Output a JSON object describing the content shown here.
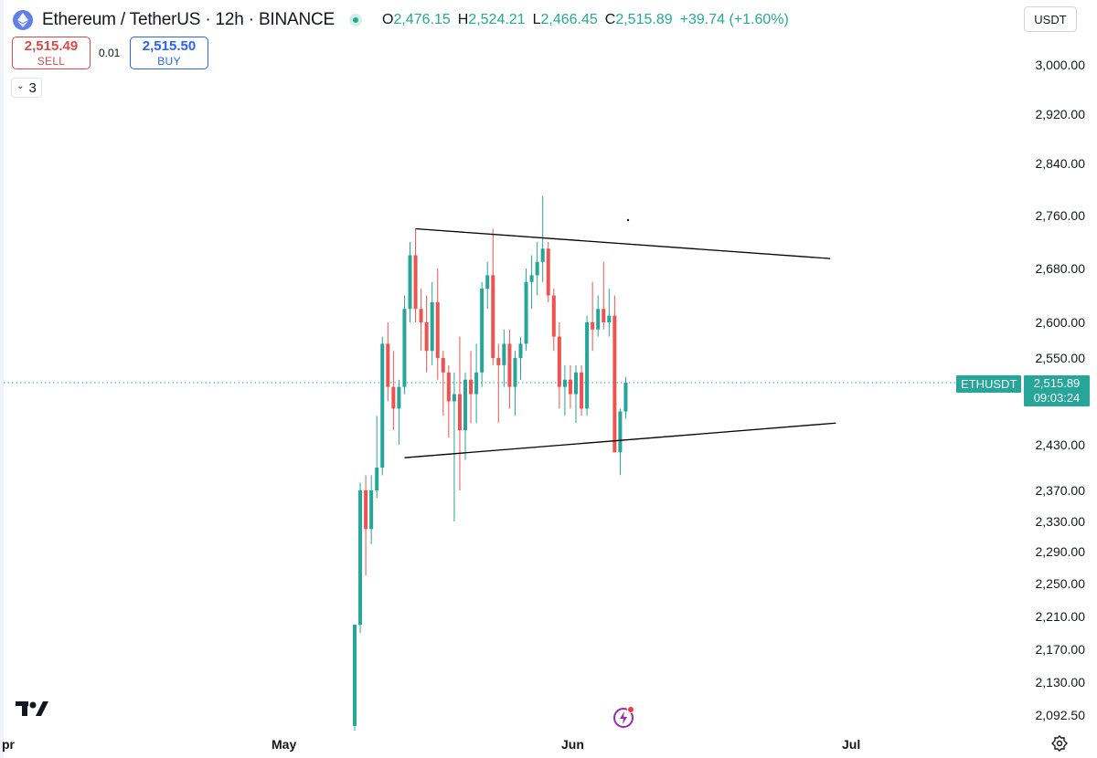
{
  "header": {
    "title": "Ethereum / TetherUS · 12h · BINANCE",
    "ohlc": [
      {
        "key": "O",
        "value": "2,476.15"
      },
      {
        "key": "H",
        "value": "2,524.21"
      },
      {
        "key": "L",
        "value": "2,466.45"
      },
      {
        "key": "C",
        "value": "2,515.89"
      }
    ],
    "change": "+39.74 (+1.60%)"
  },
  "currency": "USDT",
  "trade": {
    "sell_price": "2,515.49",
    "sell_label": "SELL",
    "spread": "0.01",
    "buy_price": "2,515.50",
    "buy_label": "BUY"
  },
  "indicators_toggle": {
    "count": "3"
  },
  "price_axis": {
    "ticks": [
      "3,000.00",
      "2,920.00",
      "2,840.00",
      "2,760.00",
      "2,680.00",
      "2,600.00",
      "2,550.00",
      "2,430.00",
      "2,370.00",
      "2,330.00",
      "2,290.00",
      "2,250.00",
      "2,210.00",
      "2,170.00",
      "2,130.00",
      "2,092.50"
    ]
  },
  "symbol_badge": "ETHUSDT",
  "last_price": {
    "price": "2,515.89",
    "countdown": "09:03:24"
  },
  "time_axis": {
    "ticks": [
      "pr",
      "May",
      "Jun",
      "Jul"
    ]
  },
  "colors": {
    "up": "#26a69a",
    "down": "#ef5350",
    "trendline": "#000000",
    "buy": "#2962ff",
    "sell": "#e04848"
  },
  "chart_data": {
    "type": "candlestick",
    "symbol": "ETHUSDT",
    "interval": "12h",
    "last_price": 2515.89,
    "candles": [
      {
        "o": 2080,
        "h": 2200,
        "l": 2070,
        "c": 2200
      },
      {
        "o": 2200,
        "h": 2380,
        "l": 2190,
        "c": 2370
      },
      {
        "o": 2370,
        "h": 2390,
        "l": 2260,
        "c": 2320
      },
      {
        "o": 2320,
        "h": 2390,
        "l": 2300,
        "c": 2370
      },
      {
        "o": 2370,
        "h": 2470,
        "l": 2360,
        "c": 2400
      },
      {
        "o": 2400,
        "h": 2580,
        "l": 2390,
        "c": 2570
      },
      {
        "o": 2570,
        "h": 2600,
        "l": 2490,
        "c": 2510
      },
      {
        "o": 2510,
        "h": 2560,
        "l": 2450,
        "c": 2480
      },
      {
        "o": 2480,
        "h": 2520,
        "l": 2430,
        "c": 2510
      },
      {
        "o": 2510,
        "h": 2640,
        "l": 2500,
        "c": 2620
      },
      {
        "o": 2620,
        "h": 2720,
        "l": 2600,
        "c": 2700
      },
      {
        "o": 2700,
        "h": 2740,
        "l": 2600,
        "c": 2620
      },
      {
        "o": 2620,
        "h": 2650,
        "l": 2560,
        "c": 2600
      },
      {
        "o": 2600,
        "h": 2640,
        "l": 2530,
        "c": 2560
      },
      {
        "o": 2560,
        "h": 2660,
        "l": 2540,
        "c": 2630
      },
      {
        "o": 2630,
        "h": 2680,
        "l": 2520,
        "c": 2550
      },
      {
        "o": 2550,
        "h": 2560,
        "l": 2470,
        "c": 2530
      },
      {
        "o": 2530,
        "h": 2540,
        "l": 2440,
        "c": 2490
      },
      {
        "o": 2490,
        "h": 2530,
        "l": 2330,
        "c": 2500
      },
      {
        "o": 2500,
        "h": 2580,
        "l": 2370,
        "c": 2450
      },
      {
        "o": 2450,
        "h": 2530,
        "l": 2410,
        "c": 2520
      },
      {
        "o": 2520,
        "h": 2560,
        "l": 2460,
        "c": 2500
      },
      {
        "o": 2500,
        "h": 2570,
        "l": 2460,
        "c": 2530
      },
      {
        "o": 2530,
        "h": 2660,
        "l": 2510,
        "c": 2650
      },
      {
        "o": 2650,
        "h": 2690,
        "l": 2620,
        "c": 2670
      },
      {
        "o": 2670,
        "h": 2740,
        "l": 2540,
        "c": 2550
      },
      {
        "o": 2550,
        "h": 2570,
        "l": 2460,
        "c": 2540
      },
      {
        "o": 2540,
        "h": 2590,
        "l": 2510,
        "c": 2570
      },
      {
        "o": 2570,
        "h": 2590,
        "l": 2480,
        "c": 2510
      },
      {
        "o": 2510,
        "h": 2560,
        "l": 2470,
        "c": 2550
      },
      {
        "o": 2550,
        "h": 2580,
        "l": 2520,
        "c": 2570
      },
      {
        "o": 2570,
        "h": 2680,
        "l": 2560,
        "c": 2660
      },
      {
        "o": 2660,
        "h": 2700,
        "l": 2620,
        "c": 2670
      },
      {
        "o": 2670,
        "h": 2720,
        "l": 2640,
        "c": 2690
      },
      {
        "o": 2690,
        "h": 2790,
        "l": 2660,
        "c": 2710
      },
      {
        "o": 2710,
        "h": 2720,
        "l": 2630,
        "c": 2640
      },
      {
        "o": 2640,
        "h": 2650,
        "l": 2560,
        "c": 2580
      },
      {
        "o": 2580,
        "h": 2600,
        "l": 2480,
        "c": 2510
      },
      {
        "o": 2510,
        "h": 2540,
        "l": 2470,
        "c": 2520
      },
      {
        "o": 2520,
        "h": 2540,
        "l": 2480,
        "c": 2500
      },
      {
        "o": 2500,
        "h": 2540,
        "l": 2460,
        "c": 2530
      },
      {
        "o": 2530,
        "h": 2540,
        "l": 2470,
        "c": 2480
      },
      {
        "o": 2480,
        "h": 2610,
        "l": 2470,
        "c": 2600
      },
      {
        "o": 2600,
        "h": 2660,
        "l": 2560,
        "c": 2590
      },
      {
        "o": 2590,
        "h": 2640,
        "l": 2580,
        "c": 2620
      },
      {
        "o": 2620,
        "h": 2690,
        "l": 2590,
        "c": 2600
      },
      {
        "o": 2600,
        "h": 2650,
        "l": 2580,
        "c": 2610
      },
      {
        "o": 2610,
        "h": 2640,
        "l": 2420,
        "c": 2420
      },
      {
        "o": 2420,
        "h": 2480,
        "l": 2390,
        "c": 2476
      },
      {
        "o": 2476,
        "h": 2524,
        "l": 2466,
        "c": 2516
      }
    ],
    "trendlines": [
      {
        "name": "upper",
        "points": [
          {
            "candle": 11,
            "price": 2740
          },
          {
            "candle": 86,
            "price": 2695
          }
        ]
      },
      {
        "name": "lower",
        "points": [
          {
            "candle": 9,
            "price": 2413
          },
          {
            "candle": 87,
            "price": 2460
          }
        ]
      }
    ]
  }
}
